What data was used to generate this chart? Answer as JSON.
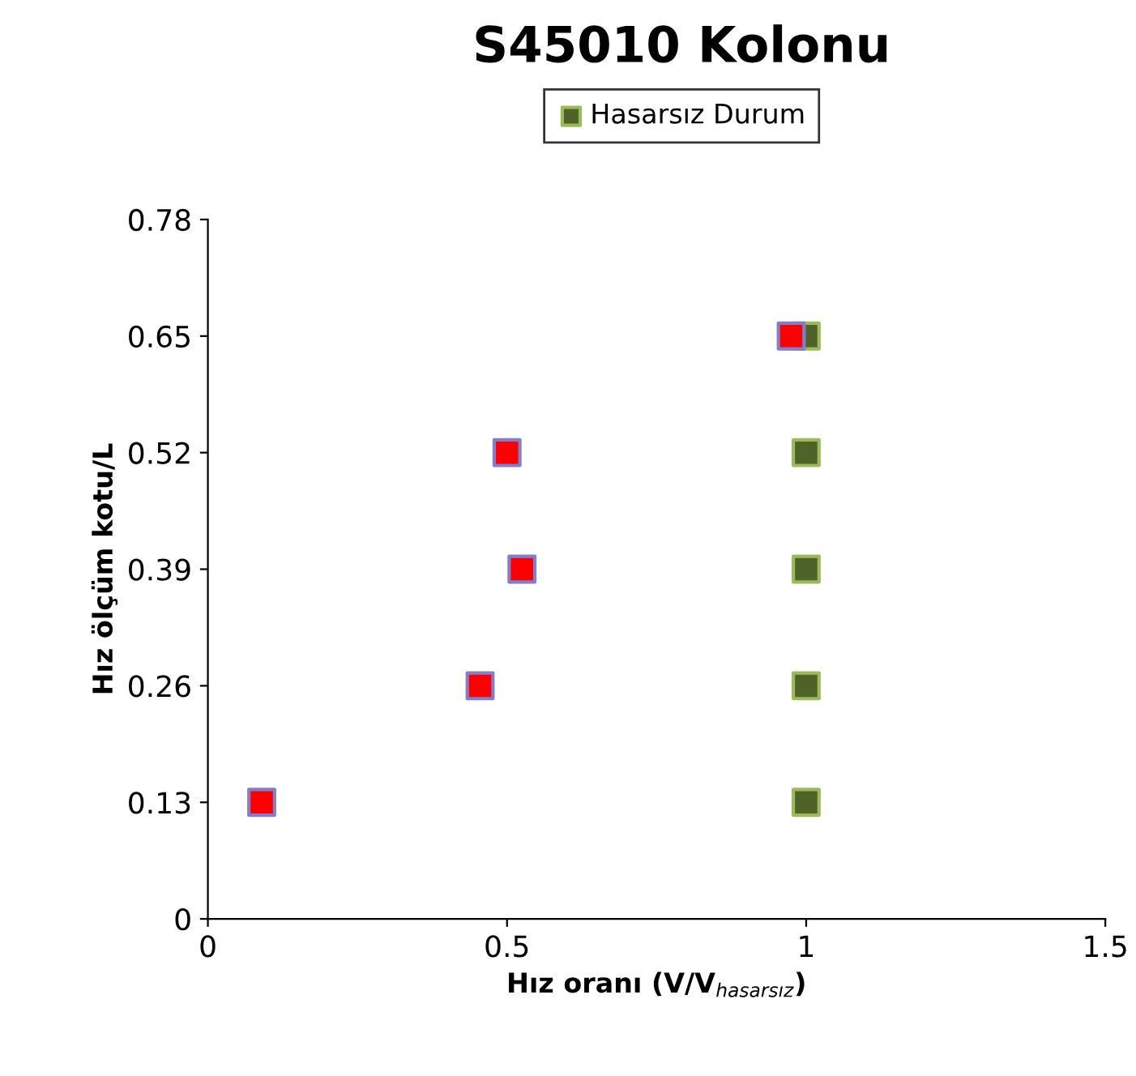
{
  "chart_data": {
    "type": "scatter",
    "title": "S45010 Kolonu",
    "xlabel": "Hız oranı (V/V$_{hasarsız}$)",
    "ylabel": "Hız ölçüm kotu/L",
    "series": [
      {
        "name": "Hasarsız Durum",
        "color": "#4f6228",
        "x": [
          1,
          1,
          1,
          1,
          1
        ],
        "values": [
          0.13,
          0.26,
          0.39,
          0.52,
          0.65
        ]
      },
      {
        "color": "#ff0000",
        "x": [
          0.09,
          0.455,
          0.525,
          0.5,
          0.975
        ],
        "values": [
          0.13,
          0.26,
          0.39,
          0.52,
          0.65
        ]
      }
    ],
    "xlim": [
      0,
      1.5
    ],
    "xticks": [
      0,
      0.5,
      1,
      1.5
    ],
    "ylim": [
      0,
      0.78
    ],
    "yticks": [
      0,
      0.13,
      0.26,
      0.39,
      0.52,
      0.65,
      0.78
    ],
    "grid": false,
    "legend": "top",
    "marker": "square"
  }
}
